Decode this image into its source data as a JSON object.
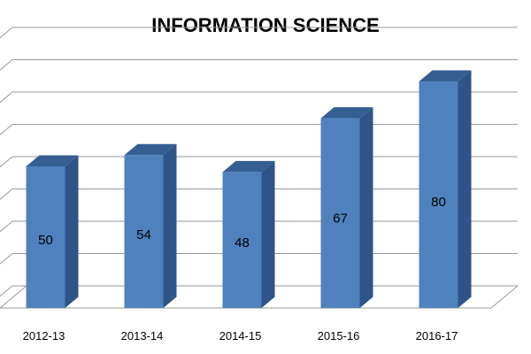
{
  "chart_data": {
    "type": "bar",
    "title": "INFORMATION SCIENCE",
    "categories": [
      "2012-13",
      "2013-14",
      "2014-15",
      "2015-16",
      "2016-17"
    ],
    "values": [
      50,
      54,
      48,
      67,
      80
    ],
    "ylim": [
      0,
      80
    ],
    "grid": true,
    "three_d": true,
    "bar_color": "#4f81bd",
    "bar_side_color": "#2e5488",
    "bar_top_color": "#365f91",
    "data_labels": true
  }
}
